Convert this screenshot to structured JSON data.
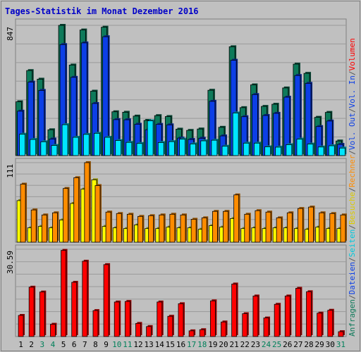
{
  "chart_data": {
    "type": "bar",
    "title": "Tages-Statistik im Monat Dezember 2016",
    "days": [
      "1",
      "2",
      "3",
      "4",
      "5",
      "6",
      "7",
      "8",
      "9",
      "10",
      "11",
      "12",
      "13",
      "14",
      "15",
      "16",
      "17",
      "18",
      "19",
      "20",
      "21",
      "22",
      "23",
      "24",
      "25",
      "26",
      "27",
      "28",
      "29",
      "30",
      "31"
    ],
    "weekend_days": [
      "3",
      "4",
      "10",
      "11",
      "17",
      "18",
      "24",
      "25",
      "31"
    ],
    "panels": [
      {
        "id": "top",
        "scale_label": "847",
        "ylim": [
          0,
          847
        ],
        "series": [
          {
            "name": "Anfragen",
            "color": "#0e7a5a",
            "values": [
              350,
              553,
              497,
              168,
              847,
              589,
              817,
              419,
              835,
              285,
              282,
              257,
              229,
              260,
              254,
              172,
              164,
              173,
              425,
              184,
              708,
              312,
              460,
              320,
              334,
              440,
              595,
              535,
              249,
              281,
              95
            ]
          },
          {
            "name": "Dateien",
            "color": "#0c3fe6",
            "values": [
              289,
              478,
              424,
              108,
              722,
              509,
              733,
              339,
              773,
              234,
              233,
              204,
              168,
              203,
              200,
              114,
              105,
              113,
              353,
              128,
              620,
              253,
              397,
              261,
              275,
              380,
              521,
              470,
              189,
              225,
              73
            ]
          },
          {
            "name": "Seiten",
            "color": "#00e5ff",
            "values": [
              139,
              105,
              90,
              66,
              201,
              119,
              138,
              145,
              119,
              98,
              86,
              79,
              226,
              85,
              91,
              107,
              76,
              96,
              100,
              61,
              277,
              81,
              81,
              57,
              55,
              71,
              107,
              75,
              56,
              64,
              49
            ]
          }
        ]
      },
      {
        "id": "mid",
        "scale_label": "111",
        "ylim": [
          0,
          111
        ],
        "series": [
          {
            "name": "Besuche",
            "color": "#ffff00",
            "values": [
              58,
              20,
              22,
              20,
              31,
              54,
              74,
              87,
              22,
              20,
              19,
              24,
              19,
              19,
              21,
              20,
              20,
              18,
              23,
              21,
              33,
              19,
              20,
              19,
              20,
              20,
              19,
              18,
              21,
              19,
              19
            ]
          },
          {
            "name": "Rechner",
            "color": "#ff8c00",
            "values": [
              81,
              45,
              38,
              41,
              75,
              90,
              111,
              79,
              42,
              40,
              39,
              36,
              37,
              38,
              39,
              38,
              32,
              34,
              43,
              43,
              66,
              39,
              44,
              42,
              34,
              41,
              47,
              49,
              41,
              40,
              38
            ]
          }
        ]
      },
      {
        "id": "bot",
        "scale_label": "30.59",
        "ylim": [
          0,
          30.59
        ],
        "series": [
          {
            "name": "Volumen",
            "color": "#ff0000",
            "values": [
              7.4,
              17.3,
              15.6,
              4.3,
              30.2,
              19.0,
              26.4,
              9.1,
              25.2,
              12.1,
              12.3,
              4.6,
              3.5,
              12.1,
              7.1,
              11.5,
              2.0,
              2.4,
              12.5,
              5.1,
              18.4,
              8.0,
              14.2,
              6.5,
              11.3,
              14.2,
              16.9,
              15.7,
              8.2,
              9.2,
              1.7
            ]
          }
        ]
      }
    ],
    "legend_right": [
      {
        "text": "Anfragen",
        "color": "#0e7a5a"
      },
      {
        "text": "/",
        "color": "#555555"
      },
      {
        "text": "Dateien",
        "color": "#0c3fe6"
      },
      {
        "text": "/",
        "color": "#555555"
      },
      {
        "text": "Seiten",
        "color": "#00c8dc"
      },
      {
        "text": "/",
        "color": "#555555"
      },
      {
        "text": "Besuche",
        "color": "#dccb00"
      },
      {
        "text": "/",
        "color": "#555555"
      },
      {
        "text": "Rechner",
        "color": "#ff8c00"
      },
      {
        "text": "/",
        "color": "#555555"
      },
      {
        "text": "Vol. Out",
        "color": "#0c3fe6"
      },
      {
        "text": "/",
        "color": "#555555"
      },
      {
        "text": "Vol. In",
        "color": "#0c3fe6"
      },
      {
        "text": "/",
        "color": "#555555"
      },
      {
        "text": "Volumen",
        "color": "#ff0000"
      }
    ],
    "colors": {
      "background": "#c0c0c0",
      "title": "#0000c8",
      "weekday": "#000000",
      "weekend": "#00805a",
      "grid": "#9a9a9a"
    }
  }
}
